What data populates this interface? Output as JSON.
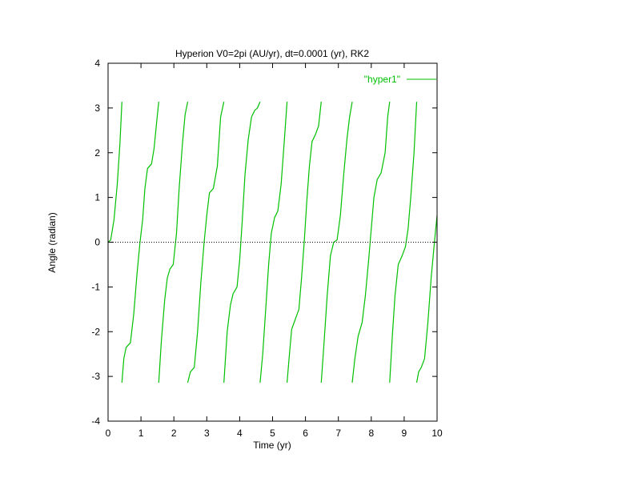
{
  "colors": {
    "series": "#00c000",
    "axis": "#000000",
    "background": "#ffffff"
  },
  "chart_data": {
    "type": "line",
    "title": "Hyperion V0=2pi (AU/yr), dt=0.0001 (yr), RK2",
    "xlabel": "Time (yr)",
    "ylabel": "Angle (radian)",
    "xlim": [
      0,
      10
    ],
    "ylim": [
      -4,
      4
    ],
    "xticks": [
      "0",
      "1",
      "2",
      "3",
      "4",
      "5",
      "6",
      "7",
      "8",
      "9",
      "10"
    ],
    "yticks": [
      "4",
      "3",
      "2",
      "1",
      "0",
      "-1",
      "-2",
      "-3",
      "-4"
    ],
    "grid": false,
    "zero_line": true,
    "legend_position": "top-right",
    "series": [
      {
        "name": "\"hyper1\"",
        "segments": [
          [
            [
              0,
              0
            ],
            [
              0.08,
              0.05
            ],
            [
              0.18,
              0.5
            ],
            [
              0.28,
              1.3
            ],
            [
              0.36,
              2.2
            ],
            [
              0.42,
              3.14
            ]
          ],
          [
            [
              0.42,
              -3.14
            ],
            [
              0.48,
              -2.6
            ],
            [
              0.55,
              -2.35
            ],
            [
              0.68,
              -2.25
            ],
            [
              0.78,
              -1.6
            ],
            [
              0.88,
              -0.7
            ],
            [
              0.97,
              0
            ],
            [
              1.05,
              0.5
            ],
            [
              1.12,
              1.2
            ],
            [
              1.2,
              1.65
            ],
            [
              1.32,
              1.75
            ],
            [
              1.4,
              2.1
            ],
            [
              1.48,
              2.7
            ],
            [
              1.54,
              3.14
            ]
          ],
          [
            [
              1.54,
              -3.14
            ],
            [
              1.62,
              -2.2
            ],
            [
              1.72,
              -1.3
            ],
            [
              1.8,
              -0.8
            ],
            [
              1.88,
              -0.6
            ],
            [
              1.98,
              -0.5
            ],
            [
              2.08,
              0.2
            ],
            [
              2.16,
              1.2
            ],
            [
              2.26,
              2.2
            ],
            [
              2.34,
              2.85
            ],
            [
              2.42,
              3.14
            ]
          ],
          [
            [
              2.42,
              -3.14
            ],
            [
              2.5,
              -2.9
            ],
            [
              2.62,
              -2.8
            ],
            [
              2.72,
              -2.0
            ],
            [
              2.82,
              -0.9
            ],
            [
              2.92,
              0
            ],
            [
              3.0,
              0.6
            ],
            [
              3.08,
              1.1
            ],
            [
              3.2,
              1.2
            ],
            [
              3.32,
              1.7
            ],
            [
              3.42,
              2.8
            ],
            [
              3.52,
              3.14
            ]
          ],
          [
            [
              3.52,
              -3.14
            ],
            [
              3.62,
              -2.0
            ],
            [
              3.72,
              -1.4
            ],
            [
              3.8,
              -1.15
            ],
            [
              3.92,
              -1.0
            ],
            [
              4.0,
              -0.4
            ],
            [
              4.08,
              0.5
            ],
            [
              4.16,
              1.5
            ],
            [
              4.26,
              2.3
            ],
            [
              4.36,
              2.8
            ],
            [
              4.46,
              2.95
            ],
            [
              4.54,
              3.0
            ],
            [
              4.62,
              3.14
            ]
          ],
          [
            [
              4.62,
              -3.14
            ],
            [
              4.7,
              -2.5
            ],
            [
              4.8,
              -1.4
            ],
            [
              4.88,
              -0.5
            ],
            [
              4.96,
              0.2
            ],
            [
              5.06,
              0.55
            ],
            [
              5.16,
              0.7
            ],
            [
              5.26,
              1.3
            ],
            [
              5.36,
              2.3
            ],
            [
              5.44,
              3.14
            ]
          ],
          [
            [
              5.44,
              -3.14
            ],
            [
              5.5,
              -2.6
            ],
            [
              5.58,
              -1.95
            ],
            [
              5.7,
              -1.7
            ],
            [
              5.8,
              -1.5
            ],
            [
              5.88,
              -0.8
            ],
            [
              5.96,
              0
            ],
            [
              6.04,
              0.9
            ],
            [
              6.12,
              1.7
            ],
            [
              6.2,
              2.25
            ],
            [
              6.3,
              2.4
            ],
            [
              6.4,
              2.6
            ],
            [
              6.48,
              3.14
            ]
          ],
          [
            [
              6.48,
              -3.14
            ],
            [
              6.56,
              -2.3
            ],
            [
              6.66,
              -1.2
            ],
            [
              6.76,
              -0.3
            ],
            [
              6.86,
              0.0
            ],
            [
              6.96,
              0.05
            ],
            [
              7.06,
              0.6
            ],
            [
              7.16,
              1.5
            ],
            [
              7.26,
              2.3
            ],
            [
              7.34,
              2.8
            ],
            [
              7.42,
              3.14
            ]
          ],
          [
            [
              7.42,
              -3.14
            ],
            [
              7.5,
              -2.6
            ],
            [
              7.6,
              -2.1
            ],
            [
              7.72,
              -1.8
            ],
            [
              7.82,
              -1.2
            ],
            [
              7.92,
              -0.4
            ],
            [
              8.0,
              0.3
            ],
            [
              8.08,
              1.0
            ],
            [
              8.18,
              1.4
            ],
            [
              8.3,
              1.55
            ],
            [
              8.42,
              2.0
            ],
            [
              8.5,
              2.8
            ],
            [
              8.56,
              3.14
            ]
          ],
          [
            [
              8.56,
              -3.14
            ],
            [
              8.64,
              -2.1
            ],
            [
              8.72,
              -1.2
            ],
            [
              8.82,
              -0.5
            ],
            [
              8.94,
              -0.3
            ],
            [
              9.04,
              -0.1
            ],
            [
              9.12,
              0.3
            ],
            [
              9.2,
              1.0
            ],
            [
              9.3,
              2.0
            ],
            [
              9.38,
              3.14
            ]
          ],
          [
            [
              9.38,
              -3.14
            ],
            [
              9.44,
              -2.9
            ],
            [
              9.52,
              -2.8
            ],
            [
              9.62,
              -2.6
            ],
            [
              9.72,
              -1.8
            ],
            [
              9.82,
              -0.8
            ],
            [
              9.92,
              0
            ],
            [
              10.0,
              0.6
            ]
          ]
        ]
      }
    ]
  }
}
